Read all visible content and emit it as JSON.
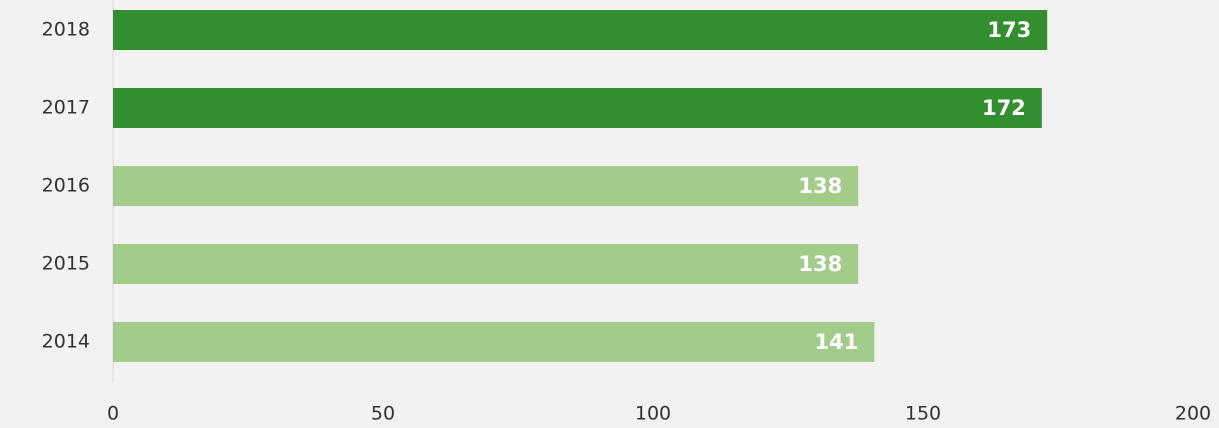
{
  "chart_data": {
    "type": "bar",
    "orientation": "horizontal",
    "categories": [
      "2018",
      "2017",
      "2016",
      "2015",
      "2014"
    ],
    "values": [
      173,
      172,
      138,
      138,
      141
    ],
    "colors": [
      "#338e2f",
      "#338e2f",
      "#a3cc8a",
      "#a3cc8a",
      "#a3cc8a"
    ],
    "xlim": [
      0,
      200
    ],
    "xticks": [
      0,
      50,
      100,
      150,
      200
    ]
  }
}
